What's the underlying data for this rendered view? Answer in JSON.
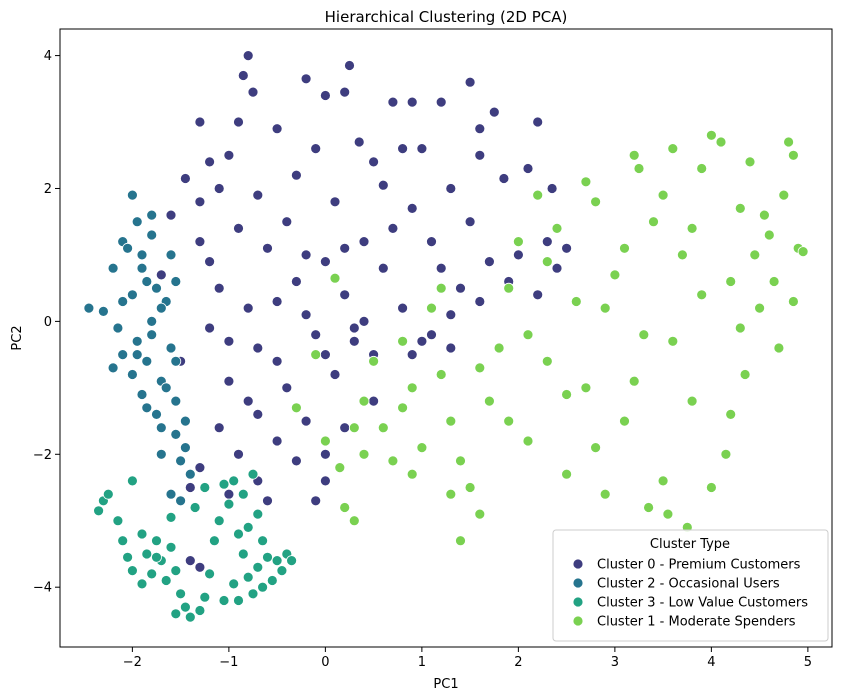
{
  "chart_data": {
    "type": "scatter",
    "title": "Hierarchical Clustering (2D PCA)",
    "xlabel": "PC1",
    "ylabel": "PC2",
    "xlim": [
      -2.75,
      5.25
    ],
    "ylim": [
      -4.9,
      4.4
    ],
    "xticks": [
      -2,
      -1,
      0,
      1,
      2,
      3,
      4,
      5
    ],
    "yticks": [
      -4,
      -2,
      0,
      2,
      4
    ],
    "xtick_labels": [
      "−2",
      "−1",
      "0",
      "1",
      "2",
      "3",
      "4",
      "5"
    ],
    "ytick_labels": [
      "−4",
      "−2",
      "0",
      "2",
      "4"
    ],
    "grid": false,
    "legend": {
      "title": "Cluster Type",
      "placement": "lower-right"
    },
    "series": [
      {
        "name": "Cluster 0 - Premium Customers",
        "color": "#3e3d7f",
        "points": [
          [
            -0.8,
            4.0
          ],
          [
            0.25,
            3.85
          ],
          [
            -0.85,
            3.7
          ],
          [
            -0.75,
            3.45
          ],
          [
            -0.2,
            3.65
          ],
          [
            0.0,
            3.4
          ],
          [
            0.2,
            3.45
          ],
          [
            -1.3,
            3.0
          ],
          [
            1.5,
            3.6
          ],
          [
            0.7,
            3.3
          ],
          [
            0.9,
            3.3
          ],
          [
            1.2,
            3.3
          ],
          [
            1.75,
            3.15
          ],
          [
            0.8,
            2.6
          ],
          [
            1.6,
            2.9
          ],
          [
            2.2,
            3.0
          ],
          [
            -1.45,
            2.15
          ],
          [
            -1.2,
            2.4
          ],
          [
            -0.5,
            2.9
          ],
          [
            0.35,
            2.7
          ],
          [
            1.0,
            2.6
          ],
          [
            1.6,
            2.5
          ],
          [
            2.1,
            2.3
          ],
          [
            2.35,
            2.0
          ],
          [
            1.85,
            2.15
          ],
          [
            1.3,
            2.0
          ],
          [
            0.6,
            2.05
          ],
          [
            -0.3,
            2.2
          ],
          [
            -1.0,
            2.5
          ],
          [
            -1.6,
            1.6
          ],
          [
            -0.7,
            1.9
          ],
          [
            0.1,
            1.8
          ],
          [
            0.9,
            1.7
          ],
          [
            1.5,
            1.5
          ],
          [
            2.3,
            1.2
          ],
          [
            2.0,
            1.0
          ],
          [
            1.7,
            0.9
          ],
          [
            1.2,
            0.8
          ],
          [
            0.6,
            0.8
          ],
          [
            0.0,
            0.9
          ],
          [
            -0.6,
            1.1
          ],
          [
            -1.3,
            1.2
          ],
          [
            -1.7,
            0.7
          ],
          [
            -1.1,
            0.5
          ],
          [
            -0.5,
            0.3
          ],
          [
            0.2,
            0.4
          ],
          [
            0.8,
            0.2
          ],
          [
            1.3,
            0.1
          ],
          [
            1.9,
            0.6
          ],
          [
            2.2,
            0.4
          ],
          [
            1.0,
            -0.3
          ],
          [
            0.5,
            -0.5
          ],
          [
            -0.1,
            -0.2
          ],
          [
            -0.7,
            -0.4
          ],
          [
            -1.2,
            -0.1
          ],
          [
            -1.5,
            -0.6
          ],
          [
            -1.0,
            -0.9
          ],
          [
            -0.4,
            -1.0
          ],
          [
            0.1,
            -0.8
          ],
          [
            0.5,
            -1.2
          ],
          [
            0.9,
            -0.5
          ],
          [
            1.3,
            -0.4
          ],
          [
            -0.2,
            -1.5
          ],
          [
            -0.7,
            -1.4
          ],
          [
            -1.1,
            -1.6
          ],
          [
            -0.5,
            -1.8
          ],
          [
            -0.9,
            -2.0
          ],
          [
            -1.3,
            -2.2
          ],
          [
            -0.3,
            -2.1
          ],
          [
            0.0,
            -2.0
          ],
          [
            0.2,
            -1.6
          ],
          [
            -0.7,
            -2.4
          ],
          [
            -1.0,
            -2.6
          ],
          [
            -0.6,
            -2.7
          ],
          [
            -1.4,
            -2.5
          ],
          [
            -1.3,
            -3.7
          ],
          [
            -1.4,
            -3.6
          ],
          [
            -0.1,
            -2.7
          ],
          [
            0.0,
            -2.4
          ],
          [
            -1.2,
            0.9
          ],
          [
            -0.8,
            0.2
          ],
          [
            -0.3,
            0.6
          ],
          [
            0.4,
            1.2
          ],
          [
            0.7,
            1.4
          ],
          [
            1.1,
            1.2
          ],
          [
            1.4,
            0.5
          ],
          [
            0.3,
            -0.1
          ],
          [
            -0.2,
            0.1
          ],
          [
            -0.9,
            1.4
          ],
          [
            -1.3,
            1.8
          ],
          [
            -0.4,
            1.5
          ],
          [
            0.2,
            1.1
          ],
          [
            -1.0,
            -0.3
          ],
          [
            -0.5,
            -0.6
          ],
          [
            0.0,
            -0.5
          ],
          [
            -0.8,
            -1.2
          ],
          [
            -0.3,
            -1.3
          ],
          [
            0.3,
            -0.3
          ],
          [
            1.1,
            -0.2
          ],
          [
            1.6,
            0.3
          ],
          [
            2.5,
            1.1
          ],
          [
            2.4,
            0.8
          ],
          [
            0.5,
            2.4
          ],
          [
            -0.1,
            2.6
          ],
          [
            -0.9,
            3.0
          ],
          [
            -1.1,
            2.0
          ],
          [
            -0.2,
            1.0
          ],
          [
            0.4,
            0.0
          ]
        ]
      },
      {
        "name": "Cluster 2 - Occasional Users",
        "color": "#26748e",
        "points": [
          [
            -2.45,
            0.2
          ],
          [
            -2.3,
            0.15
          ],
          [
            -2.2,
            0.8
          ],
          [
            -2.1,
            1.2
          ],
          [
            -2.0,
            1.9
          ],
          [
            -1.95,
            1.5
          ],
          [
            -1.9,
            1.0
          ],
          [
            -1.85,
            0.6
          ],
          [
            -1.8,
            1.3
          ],
          [
            -2.0,
            0.4
          ],
          [
            -2.15,
            -0.1
          ],
          [
            -2.1,
            -0.5
          ],
          [
            -2.0,
            -0.8
          ],
          [
            -1.95,
            -0.3
          ],
          [
            -1.9,
            -1.1
          ],
          [
            -1.85,
            -0.6
          ],
          [
            -1.8,
            0.0
          ],
          [
            -1.75,
            -1.4
          ],
          [
            -1.7,
            -0.9
          ],
          [
            -1.65,
            0.3
          ],
          [
            -1.6,
            -0.4
          ],
          [
            -1.55,
            -1.7
          ],
          [
            -1.5,
            -2.1
          ],
          [
            -1.55,
            -1.2
          ],
          [
            -1.45,
            -1.9
          ],
          [
            -1.4,
            -2.3
          ],
          [
            -1.6,
            -2.6
          ],
          [
            -1.5,
            -2.7
          ],
          [
            -1.7,
            -1.6
          ],
          [
            -1.8,
            -0.2
          ],
          [
            -1.9,
            0.8
          ],
          [
            -2.05,
            1.1
          ],
          [
            -1.95,
            -0.5
          ],
          [
            -1.75,
            0.5
          ],
          [
            -1.65,
            -1.0
          ],
          [
            -1.55,
            -0.6
          ],
          [
            -1.45,
            -1.5
          ],
          [
            -1.85,
            -1.3
          ],
          [
            -1.6,
            1.0
          ],
          [
            -1.7,
            0.2
          ],
          [
            -2.2,
            -0.7
          ],
          [
            -1.8,
            1.6
          ],
          [
            -1.55,
            0.6
          ],
          [
            -2.1,
            0.3
          ],
          [
            -1.7,
            -2.0
          ]
        ]
      },
      {
        "name": "Cluster 3 - Low Value Customers",
        "color": "#22a283",
        "points": [
          [
            -2.35,
            -2.85
          ],
          [
            -2.3,
            -2.7
          ],
          [
            -2.0,
            -2.4
          ],
          [
            -2.1,
            -3.3
          ],
          [
            -2.0,
            -3.75
          ],
          [
            -1.9,
            -3.2
          ],
          [
            -1.85,
            -3.5
          ],
          [
            -1.8,
            -3.8
          ],
          [
            -1.75,
            -3.3
          ],
          [
            -1.7,
            -3.6
          ],
          [
            -1.65,
            -3.9
          ],
          [
            -1.6,
            -3.4
          ],
          [
            -1.55,
            -3.75
          ],
          [
            -1.5,
            -4.1
          ],
          [
            -1.45,
            -4.3
          ],
          [
            -1.4,
            -4.45
          ],
          [
            -1.3,
            -4.35
          ],
          [
            -1.25,
            -4.15
          ],
          [
            -1.2,
            -3.8
          ],
          [
            -1.15,
            -3.3
          ],
          [
            -1.1,
            -3.0
          ],
          [
            -1.0,
            -2.75
          ],
          [
            -0.95,
            -2.4
          ],
          [
            -0.9,
            -3.2
          ],
          [
            -0.85,
            -3.5
          ],
          [
            -0.8,
            -3.85
          ],
          [
            -0.75,
            -4.1
          ],
          [
            -0.7,
            -3.7
          ],
          [
            -0.65,
            -3.3
          ],
          [
            -0.6,
            -3.55
          ],
          [
            -0.55,
            -3.9
          ],
          [
            -0.5,
            -3.6
          ],
          [
            -0.45,
            -3.75
          ],
          [
            -0.4,
            -3.5
          ],
          [
            -0.35,
            -3.6
          ],
          [
            -0.9,
            -4.2
          ],
          [
            -1.05,
            -4.2
          ],
          [
            -0.95,
            -3.95
          ],
          [
            -1.35,
            -2.8
          ],
          [
            -1.25,
            -2.5
          ],
          [
            -0.85,
            -2.6
          ],
          [
            -0.7,
            -2.9
          ],
          [
            -1.6,
            -2.95
          ],
          [
            -1.75,
            -3.55
          ],
          [
            -2.15,
            -3.0
          ],
          [
            -2.05,
            -3.55
          ],
          [
            -1.9,
            -3.95
          ],
          [
            -1.55,
            -4.4
          ],
          [
            -0.65,
            -4.0
          ],
          [
            -0.8,
            -3.1
          ],
          [
            -1.05,
            -2.45
          ],
          [
            -0.75,
            -2.3
          ],
          [
            -2.25,
            -2.6
          ]
        ]
      },
      {
        "name": "Cluster 1 - Moderate Spenders",
        "color": "#7ad151",
        "points": [
          [
            0.1,
            0.65
          ],
          [
            -0.1,
            -0.5
          ],
          [
            -0.3,
            -1.3
          ],
          [
            0.0,
            -1.8
          ],
          [
            0.15,
            -2.2
          ],
          [
            0.2,
            -2.8
          ],
          [
            0.3,
            -3.0
          ],
          [
            0.4,
            -1.2
          ],
          [
            0.5,
            -0.6
          ],
          [
            0.6,
            -1.6
          ],
          [
            0.7,
            -2.1
          ],
          [
            0.8,
            -0.3
          ],
          [
            0.9,
            -1.0
          ],
          [
            1.0,
            -1.9
          ],
          [
            1.1,
            0.2
          ],
          [
            1.2,
            -0.8
          ],
          [
            1.3,
            -1.5
          ],
          [
            1.4,
            -2.1
          ],
          [
            1.5,
            -2.5
          ],
          [
            1.4,
            -3.3
          ],
          [
            1.6,
            -2.9
          ],
          [
            1.7,
            -1.2
          ],
          [
            1.8,
            -0.4
          ],
          [
            1.9,
            0.5
          ],
          [
            2.0,
            1.2
          ],
          [
            2.1,
            -1.8
          ],
          [
            2.2,
            1.9
          ],
          [
            2.3,
            -0.6
          ],
          [
            2.4,
            1.4
          ],
          [
            2.5,
            -2.3
          ],
          [
            2.6,
            0.3
          ],
          [
            2.7,
            -1.0
          ],
          [
            2.8,
            1.8
          ],
          [
            2.9,
            -2.6
          ],
          [
            3.0,
            0.7
          ],
          [
            3.1,
            -1.5
          ],
          [
            3.2,
            2.5
          ],
          [
            3.25,
            2.3
          ],
          [
            3.3,
            -0.2
          ],
          [
            3.4,
            1.5
          ],
          [
            3.5,
            -2.4
          ],
          [
            3.55,
            -2.9
          ],
          [
            3.6,
            2.6
          ],
          [
            3.7,
            1.0
          ],
          [
            3.8,
            -1.2
          ],
          [
            3.9,
            2.3
          ],
          [
            4.0,
            2.8
          ],
          [
            4.1,
            2.7
          ],
          [
            4.15,
            -2.0
          ],
          [
            4.2,
            0.6
          ],
          [
            4.3,
            1.7
          ],
          [
            4.35,
            -0.8
          ],
          [
            4.4,
            2.4
          ],
          [
            4.5,
            0.2
          ],
          [
            4.6,
            1.3
          ],
          [
            4.7,
            -0.4
          ],
          [
            4.75,
            1.9
          ],
          [
            4.8,
            2.7
          ],
          [
            4.85,
            2.5
          ],
          [
            4.9,
            1.1
          ],
          [
            4.95,
            1.05
          ],
          [
            3.75,
            -3.1
          ],
          [
            4.0,
            -2.5
          ],
          [
            3.35,
            -2.8
          ],
          [
            2.8,
            -1.9
          ],
          [
            2.5,
            -1.1
          ],
          [
            2.1,
            -0.2
          ],
          [
            1.6,
            -0.7
          ],
          [
            1.2,
            0.5
          ],
          [
            0.8,
            -1.3
          ],
          [
            0.4,
            -2.0
          ],
          [
            2.9,
            0.2
          ],
          [
            3.2,
            -0.9
          ],
          [
            3.6,
            -0.3
          ],
          [
            3.9,
            0.4
          ],
          [
            4.2,
            -1.4
          ],
          [
            4.45,
            1.0
          ],
          [
            4.65,
            0.6
          ],
          [
            4.3,
            -0.1
          ],
          [
            3.5,
            1.9
          ],
          [
            2.7,
            2.1
          ],
          [
            2.3,
            0.9
          ],
          [
            1.9,
            -1.5
          ],
          [
            1.3,
            -2.6
          ],
          [
            0.9,
            -2.3
          ],
          [
            0.3,
            -1.6
          ],
          [
            3.1,
            1.1
          ],
          [
            3.8,
            1.4
          ],
          [
            4.55,
            1.6
          ],
          [
            4.85,
            0.3
          ]
        ]
      }
    ]
  }
}
